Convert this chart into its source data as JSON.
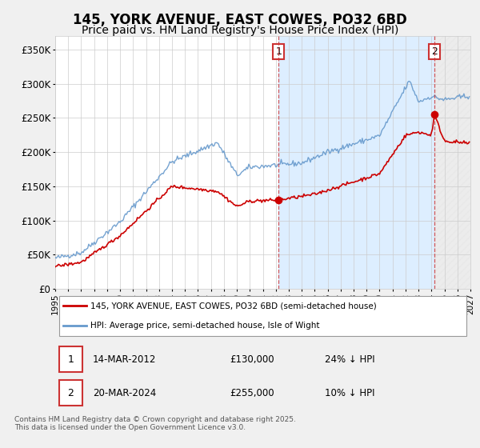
{
  "title": "145, YORK AVENUE, EAST COWES, PO32 6BD",
  "subtitle": "Price paid vs. HM Land Registry's House Price Index (HPI)",
  "title_fontsize": 12,
  "subtitle_fontsize": 10,
  "ylim": [
    0,
    370000
  ],
  "yticks": [
    0,
    50000,
    100000,
    150000,
    200000,
    250000,
    300000,
    350000
  ],
  "ytick_labels": [
    "£0",
    "£50K",
    "£100K",
    "£150K",
    "£200K",
    "£250K",
    "£300K",
    "£350K"
  ],
  "background_color": "#f0f0f0",
  "plot_bg_color": "#ffffff",
  "grid_color": "#cccccc",
  "hpi_color": "#6699cc",
  "price_color": "#cc0000",
  "sale1_x": 2012.21,
  "sale1_y": 130000,
  "sale2_x": 2024.22,
  "sale2_y": 255000,
  "vline_color": "#cc3333",
  "shade_color": "#ddeeff",
  "hatch_color": "#dddddd",
  "legend_label_price": "145, YORK AVENUE, EAST COWES, PO32 6BD (semi-detached house)",
  "legend_label_hpi": "HPI: Average price, semi-detached house, Isle of Wight",
  "annotation1_date": "14-MAR-2012",
  "annotation1_price": "£130,000",
  "annotation1_hpi": "24% ↓ HPI",
  "annotation2_date": "20-MAR-2024",
  "annotation2_price": "£255,000",
  "annotation2_hpi": "10% ↓ HPI",
  "footer": "Contains HM Land Registry data © Crown copyright and database right 2025.\nThis data is licensed under the Open Government Licence v3.0.",
  "xmin": 1995,
  "xmax": 2027
}
